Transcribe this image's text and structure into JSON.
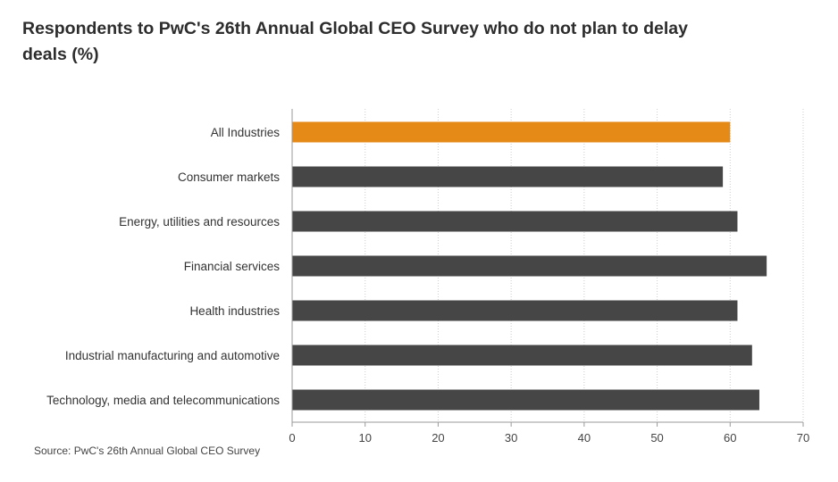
{
  "chart_data": {
    "type": "bar",
    "orientation": "horizontal",
    "title": "Respondents to PwC's 26th Annual Global CEO Survey who do not plan to delay deals (%)",
    "categories": [
      "All Industries",
      "Consumer markets",
      "Energy, utilities and resources",
      "Financial services",
      "Health industries",
      "Industrial manufacturing and automotive",
      "Technology, media and telecommunications"
    ],
    "values": [
      60,
      59,
      61,
      65,
      61,
      63,
      64
    ],
    "highlight_index": 0,
    "colors": {
      "highlight": "#e68a17",
      "default": "#464646",
      "grid": "#cccccc",
      "axis": "#999999"
    },
    "xlim": [
      0,
      70
    ],
    "xticks": [
      0,
      10,
      20,
      30,
      40,
      50,
      60,
      70
    ],
    "grid": "vertical-dotted",
    "source": "Source: PwC's 26th Annual Global CEO Survey"
  }
}
